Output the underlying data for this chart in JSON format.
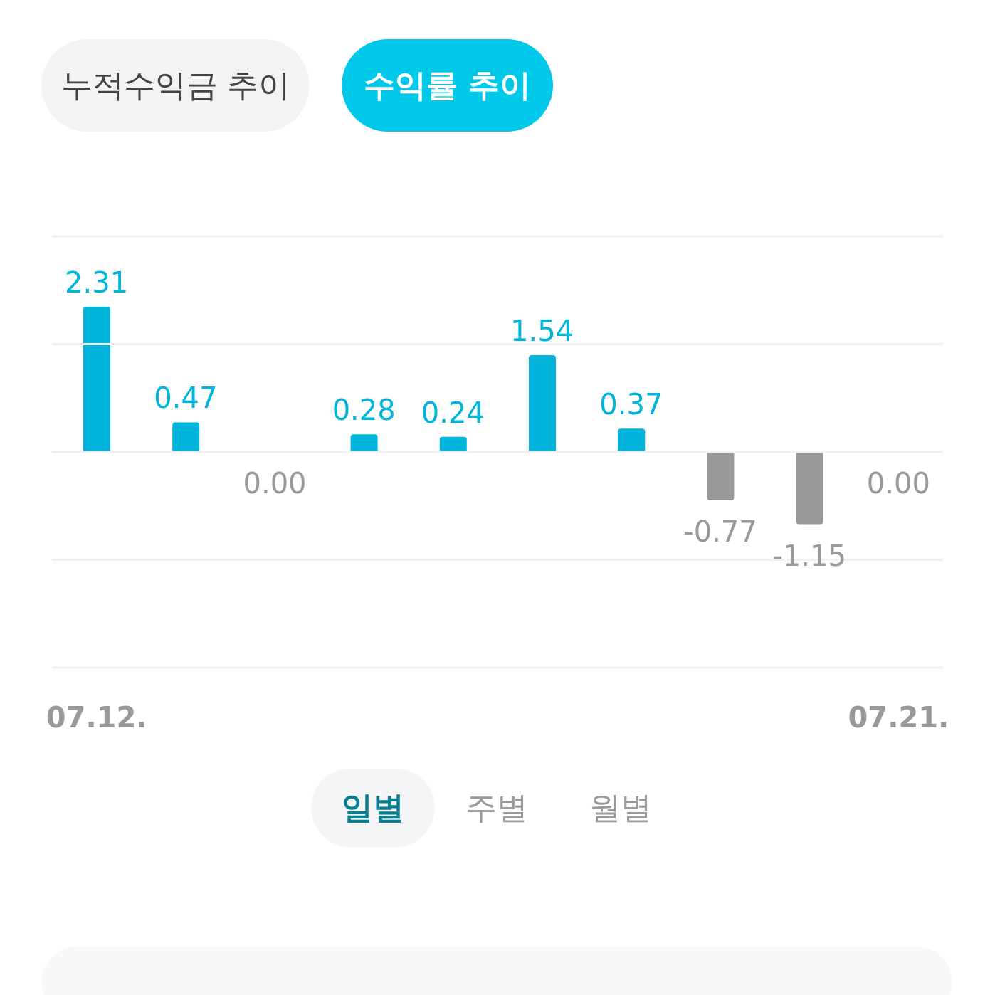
{
  "chart_data": {
    "type": "bar",
    "categories": [
      "07.12.",
      null,
      null,
      null,
      null,
      null,
      null,
      null,
      null,
      "07.21."
    ],
    "values": [
      2.31,
      0.47,
      0,
      0.28,
      0.24,
      1.54,
      0.37,
      -0.77,
      -1.15,
      0
    ],
    "colors": [
      "#00b4db",
      "#00b4db",
      "#999999",
      "#00b4db",
      "#00b4db",
      "#00b4db",
      "#00b4db",
      "#999999",
      "#999999",
      "#999999"
    ],
    "value_labels": [
      "2.31",
      "0.47",
      "0.00",
      "0.28",
      "0.24",
      "1.54",
      "0.37",
      "-0.77",
      "-1.15",
      "0.00"
    ],
    "ylim": [
      -3.43,
      3.43
    ],
    "yticks": [
      {
        "value": -3.43,
        "label": null
      },
      {
        "value": -1.715,
        "label": null
      },
      {
        "value": 0,
        "label": null
      },
      {
        "value": 1.715,
        "label": null
      },
      {
        "value": 3.43,
        "label": null
      }
    ],
    "grid": "y",
    "tick_labels": "x",
    "legend": false,
    "annotations": [
      "누적수익금 추이",
      "수익률 추이",
      "일별",
      "주별",
      "월별"
    ]
  }
}
